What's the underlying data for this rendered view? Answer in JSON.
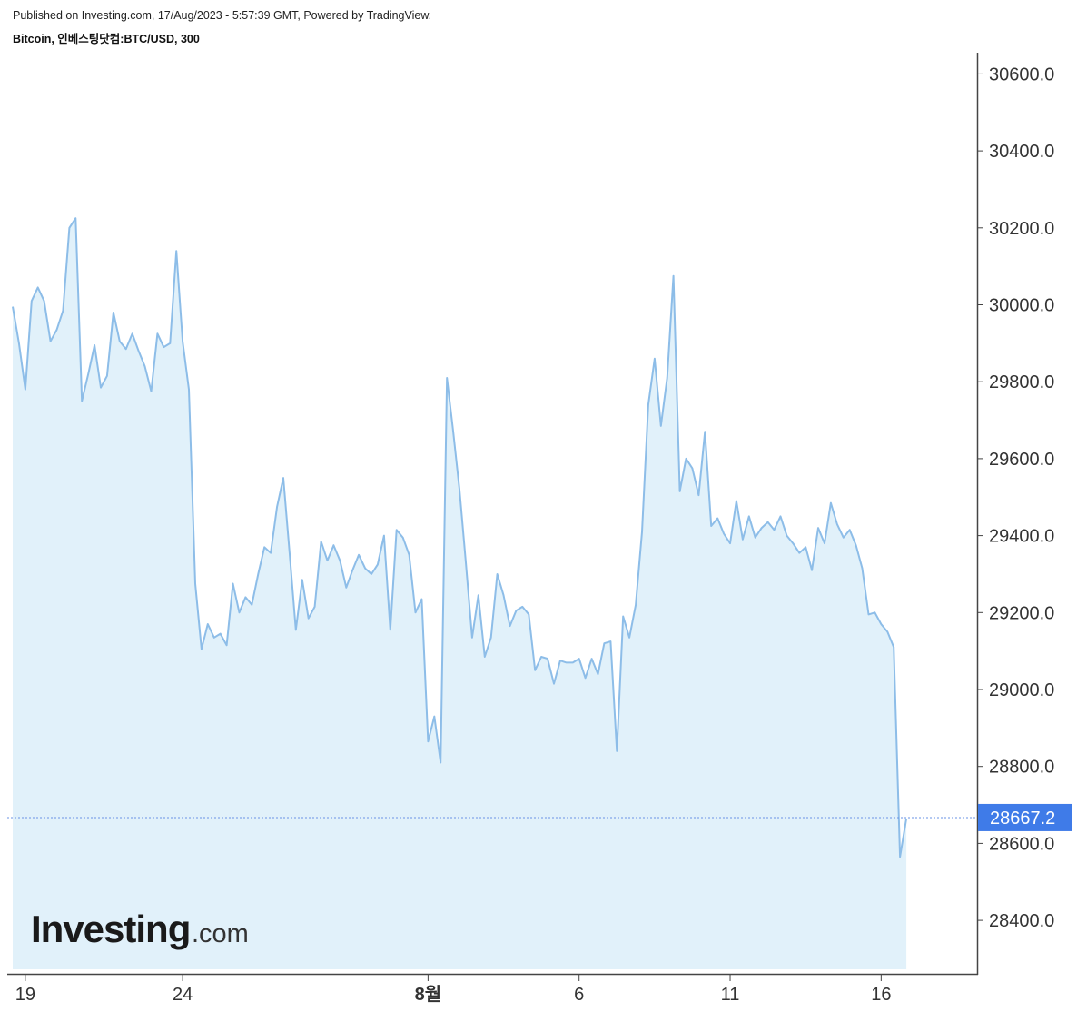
{
  "header": {
    "published": "Published on Investing.com, 17/Aug/2023 - 5:57:39 GMT, Powered by TradingView.",
    "symbol": "Bitcoin, 인베스팅닷컴:BTC/USD, 300"
  },
  "logo": {
    "brand": "Investing",
    "suffix": ".com"
  },
  "chart_data": {
    "type": "area",
    "interval": "300",
    "y_ticks": [
      "30600.0",
      "30400.0",
      "30200.0",
      "30000.0",
      "29800.0",
      "29600.0",
      "29400.0",
      "29200.0",
      "29000.0",
      "28800.0",
      "28600.0",
      "28400.0"
    ],
    "ylim": [
      28270,
      30650
    ],
    "x_ticks": [
      {
        "label": "19",
        "index": 2,
        "bold": false
      },
      {
        "label": "24",
        "index": 27,
        "bold": false
      },
      {
        "label": "8월",
        "index": 66,
        "bold": true
      },
      {
        "label": "6",
        "index": 90,
        "bold": false
      },
      {
        "label": "11",
        "index": 114,
        "bold": false
      },
      {
        "label": "16",
        "index": 138,
        "bold": false
      }
    ],
    "last_value": 28667.2,
    "last_label": "28667.2",
    "colors": {
      "line": "#8dbde8",
      "fill": "#e1f1fa",
      "last_badge": "#3f7be8",
      "price_line": "#6a93e6"
    },
    "values": [
      29995,
      29900,
      29780,
      30010,
      30045,
      30010,
      29905,
      29935,
      29985,
      30200,
      30225,
      29750,
      29820,
      29895,
      29785,
      29815,
      29980,
      29905,
      29885,
      29925,
      29880,
      29840,
      29775,
      29925,
      29890,
      29900,
      30140,
      29905,
      29780,
      29275,
      29105,
      29170,
      29135,
      29145,
      29115,
      29275,
      29200,
      29240,
      29220,
      29300,
      29370,
      29355,
      29475,
      29550,
      29355,
      29155,
      29285,
      29185,
      29215,
      29385,
      29335,
      29375,
      29335,
      29265,
      29310,
      29350,
      29315,
      29300,
      29325,
      29400,
      29155,
      29415,
      29395,
      29350,
      29200,
      29235,
      28865,
      28930,
      28810,
      29810,
      29670,
      29520,
      29330,
      29135,
      29245,
      29085,
      29135,
      29300,
      29245,
      29165,
      29205,
      29215,
      29195,
      29050,
      29085,
      29080,
      29015,
      29075,
      29070,
      29070,
      29080,
      29030,
      29080,
      29040,
      29120,
      29125,
      28840,
      29190,
      29135,
      29220,
      29410,
      29740,
      29860,
      29685,
      29810,
      30075,
      29515,
      29600,
      29575,
      29505,
      29670,
      29425,
      29445,
      29405,
      29380,
      29490,
      29390,
      29450,
      29395,
      29420,
      29435,
      29415,
      29450,
      29400,
      29380,
      29355,
      29370,
      29310,
      29420,
      29380,
      29485,
      29430,
      29395,
      29415,
      29375,
      29315,
      29195,
      29200,
      29170,
      29150,
      29110,
      28565,
      28665
    ]
  }
}
